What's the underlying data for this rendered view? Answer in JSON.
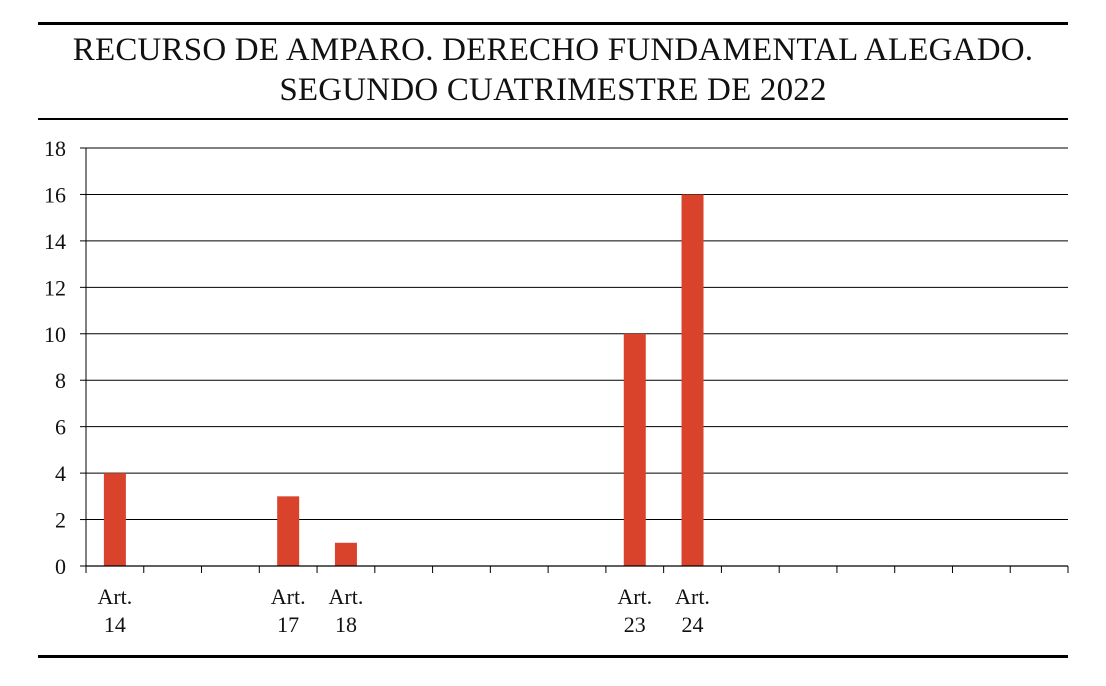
{
  "chart_data": {
    "type": "bar",
    "title": "RECURSO DE AMPARO. DERECHO FUNDAMENTAL ALEGADO.",
    "subtitle": "SEGUNDO CUATRIMESTRE DE 2022",
    "xlabel": "",
    "ylabel": "",
    "ylim": [
      0,
      18
    ],
    "yticks": [
      0,
      2,
      4,
      6,
      8,
      10,
      12,
      14,
      16,
      18
    ],
    "grid": true,
    "legend": "none",
    "bar_color": "#d9432c",
    "categories": [
      [
        "Art.",
        "14"
      ],
      [
        "",
        ""
      ],
      [
        "",
        ""
      ],
      [
        "Art.",
        "17"
      ],
      [
        "Art.",
        "18"
      ],
      [
        "",
        ""
      ],
      [
        "",
        ""
      ],
      [
        "",
        ""
      ],
      [
        "",
        ""
      ],
      [
        "Art.",
        "23"
      ],
      [
        "Art.",
        "24"
      ],
      [
        "",
        ""
      ],
      [
        "",
        ""
      ],
      [
        "",
        ""
      ],
      [
        "",
        ""
      ],
      [
        "",
        ""
      ],
      [
        "",
        ""
      ]
    ],
    "values": [
      4,
      0,
      0,
      3,
      1,
      0,
      0,
      0,
      0,
      10,
      16,
      0,
      0,
      0,
      0,
      0,
      0
    ]
  }
}
